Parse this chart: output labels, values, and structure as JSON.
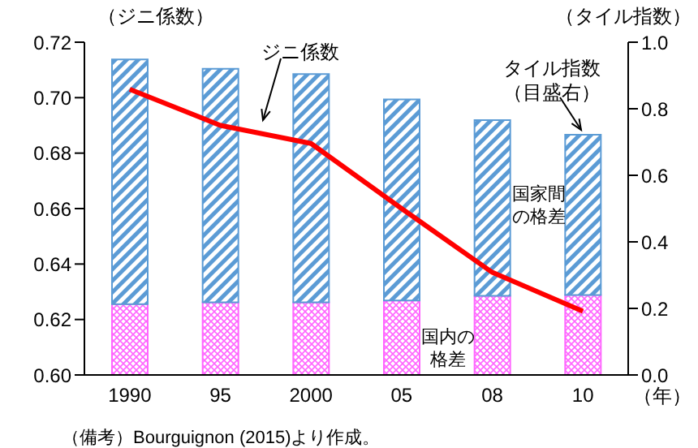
{
  "chart_data": {
    "type": "bar",
    "stacked": true,
    "categories": [
      "1990",
      "95",
      "2000",
      "05",
      "08",
      "10"
    ],
    "ylabel": "（ジニ係数）",
    "y2label": "（タイル指数）",
    "xlabel": "（年）",
    "ylim": [
      0.6,
      0.72
    ],
    "yticks": [
      {
        "value": 0.6,
        "label": "0.60"
      },
      {
        "value": 0.62,
        "label": "0.62"
      },
      {
        "value": 0.64,
        "label": "0.64"
      },
      {
        "value": 0.66,
        "label": "0.66"
      },
      {
        "value": 0.68,
        "label": "0.68"
      },
      {
        "value": 0.7,
        "label": "0.70"
      },
      {
        "value": 0.72,
        "label": "0.72"
      }
    ],
    "y2lim": [
      0,
      1
    ],
    "y2ticks": [
      {
        "value": 0,
        "label": "0.0"
      },
      {
        "value": 0.2,
        "label": "0.2"
      },
      {
        "value": 0.4,
        "label": "0.4"
      },
      {
        "value": 0.6,
        "label": "0.6"
      },
      {
        "value": 0.8,
        "label": "0.8"
      },
      {
        "value": 1,
        "label": "1.0"
      }
    ],
    "marker": "none",
    "series": [
      {
        "axis": "y2",
        "color": "#ff66ff",
        "values": [
          0.213,
          0.218,
          0.218,
          0.224,
          0.238,
          0.24
        ]
      },
      {
        "axis": "y2",
        "color": "#5b9bd5",
        "values": [
          0.735,
          0.702,
          0.686,
          0.604,
          0.528,
          0.482
        ]
      },
      {
        "type": "line",
        "axis": "y",
        "color": "#ff0000",
        "values": [
          0.703,
          0.69,
          0.6835,
          0.66,
          0.637,
          0.623
        ]
      }
    ],
    "annotations": [
      "ジニ係数",
      "タイル指数（目盛右）",
      "国家間の格差",
      "国内の格差",
      "（備考）Bourguignon (2015)より作成。"
    ]
  }
}
